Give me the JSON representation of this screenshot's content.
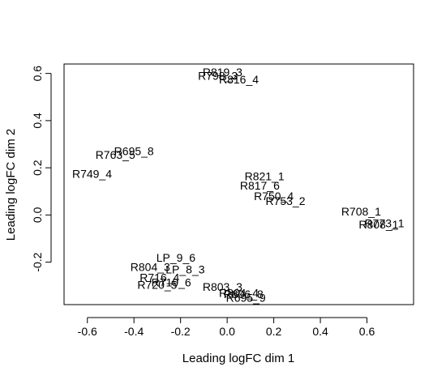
{
  "chart_data": {
    "type": "scatter",
    "title": "",
    "xlabel": "Leading logFC dim 1",
    "ylabel": "Leading logFC dim 2",
    "xlim": [
      -0.7,
      0.8
    ],
    "ylim": [
      -0.38,
      0.64
    ],
    "xticks": [
      -0.6,
      -0.4,
      -0.2,
      0.0,
      0.2,
      0.4,
      0.6
    ],
    "xtick_labels": [
      "-0.6",
      "-0.4",
      "-0.2",
      "0.0",
      "0.2",
      "0.4",
      "0.6"
    ],
    "yticks": [
      -0.2,
      0.0,
      0.2,
      0.4,
      0.6
    ],
    "ytick_labels": [
      "-0.2",
      "0.0",
      "0.2",
      "0.4",
      "0.6"
    ],
    "grid": false,
    "points": [
      {
        "label": "R819_3",
        "x": -0.02,
        "y": 0.605
      },
      {
        "label": "R798_3",
        "x": -0.04,
        "y": 0.59
      },
      {
        "label": "R816_4",
        "x": 0.05,
        "y": 0.575
      },
      {
        "label": "R695_8",
        "x": -0.4,
        "y": 0.27
      },
      {
        "label": "R763_5",
        "x": -0.48,
        "y": 0.255
      },
      {
        "label": "R749_4",
        "x": -0.58,
        "y": 0.175
      },
      {
        "label": "R821_1",
        "x": 0.16,
        "y": 0.165
      },
      {
        "label": "R817_6",
        "x": 0.14,
        "y": 0.125
      },
      {
        "label": "R750_4",
        "x": 0.2,
        "y": 0.08
      },
      {
        "label": "R753_2",
        "x": 0.25,
        "y": 0.06
      },
      {
        "label": "R708_1",
        "x": 0.575,
        "y": 0.015
      },
      {
        "label": "R773_1",
        "x": 0.675,
        "y": -0.035
      },
      {
        "label": "R808_1",
        "x": 0.65,
        "y": -0.04
      },
      {
        "label": "LP_9_6",
        "x": -0.22,
        "y": -0.18
      },
      {
        "label": "R804_3",
        "x": -0.33,
        "y": -0.22
      },
      {
        "label": "LP_8_3",
        "x": -0.18,
        "y": -0.23
      },
      {
        "label": "R716_4",
        "x": -0.29,
        "y": -0.265
      },
      {
        "label": "R719_6",
        "x": -0.24,
        "y": -0.285
      },
      {
        "label": "R720_5",
        "x": -0.3,
        "y": -0.295
      },
      {
        "label": "R803_3",
        "x": -0.02,
        "y": -0.305
      },
      {
        "label": "R804_4",
        "x": 0.05,
        "y": -0.33
      },
      {
        "label": "R806_8",
        "x": 0.07,
        "y": -0.335
      },
      {
        "label": "R695_9",
        "x": 0.08,
        "y": -0.35
      }
    ]
  }
}
